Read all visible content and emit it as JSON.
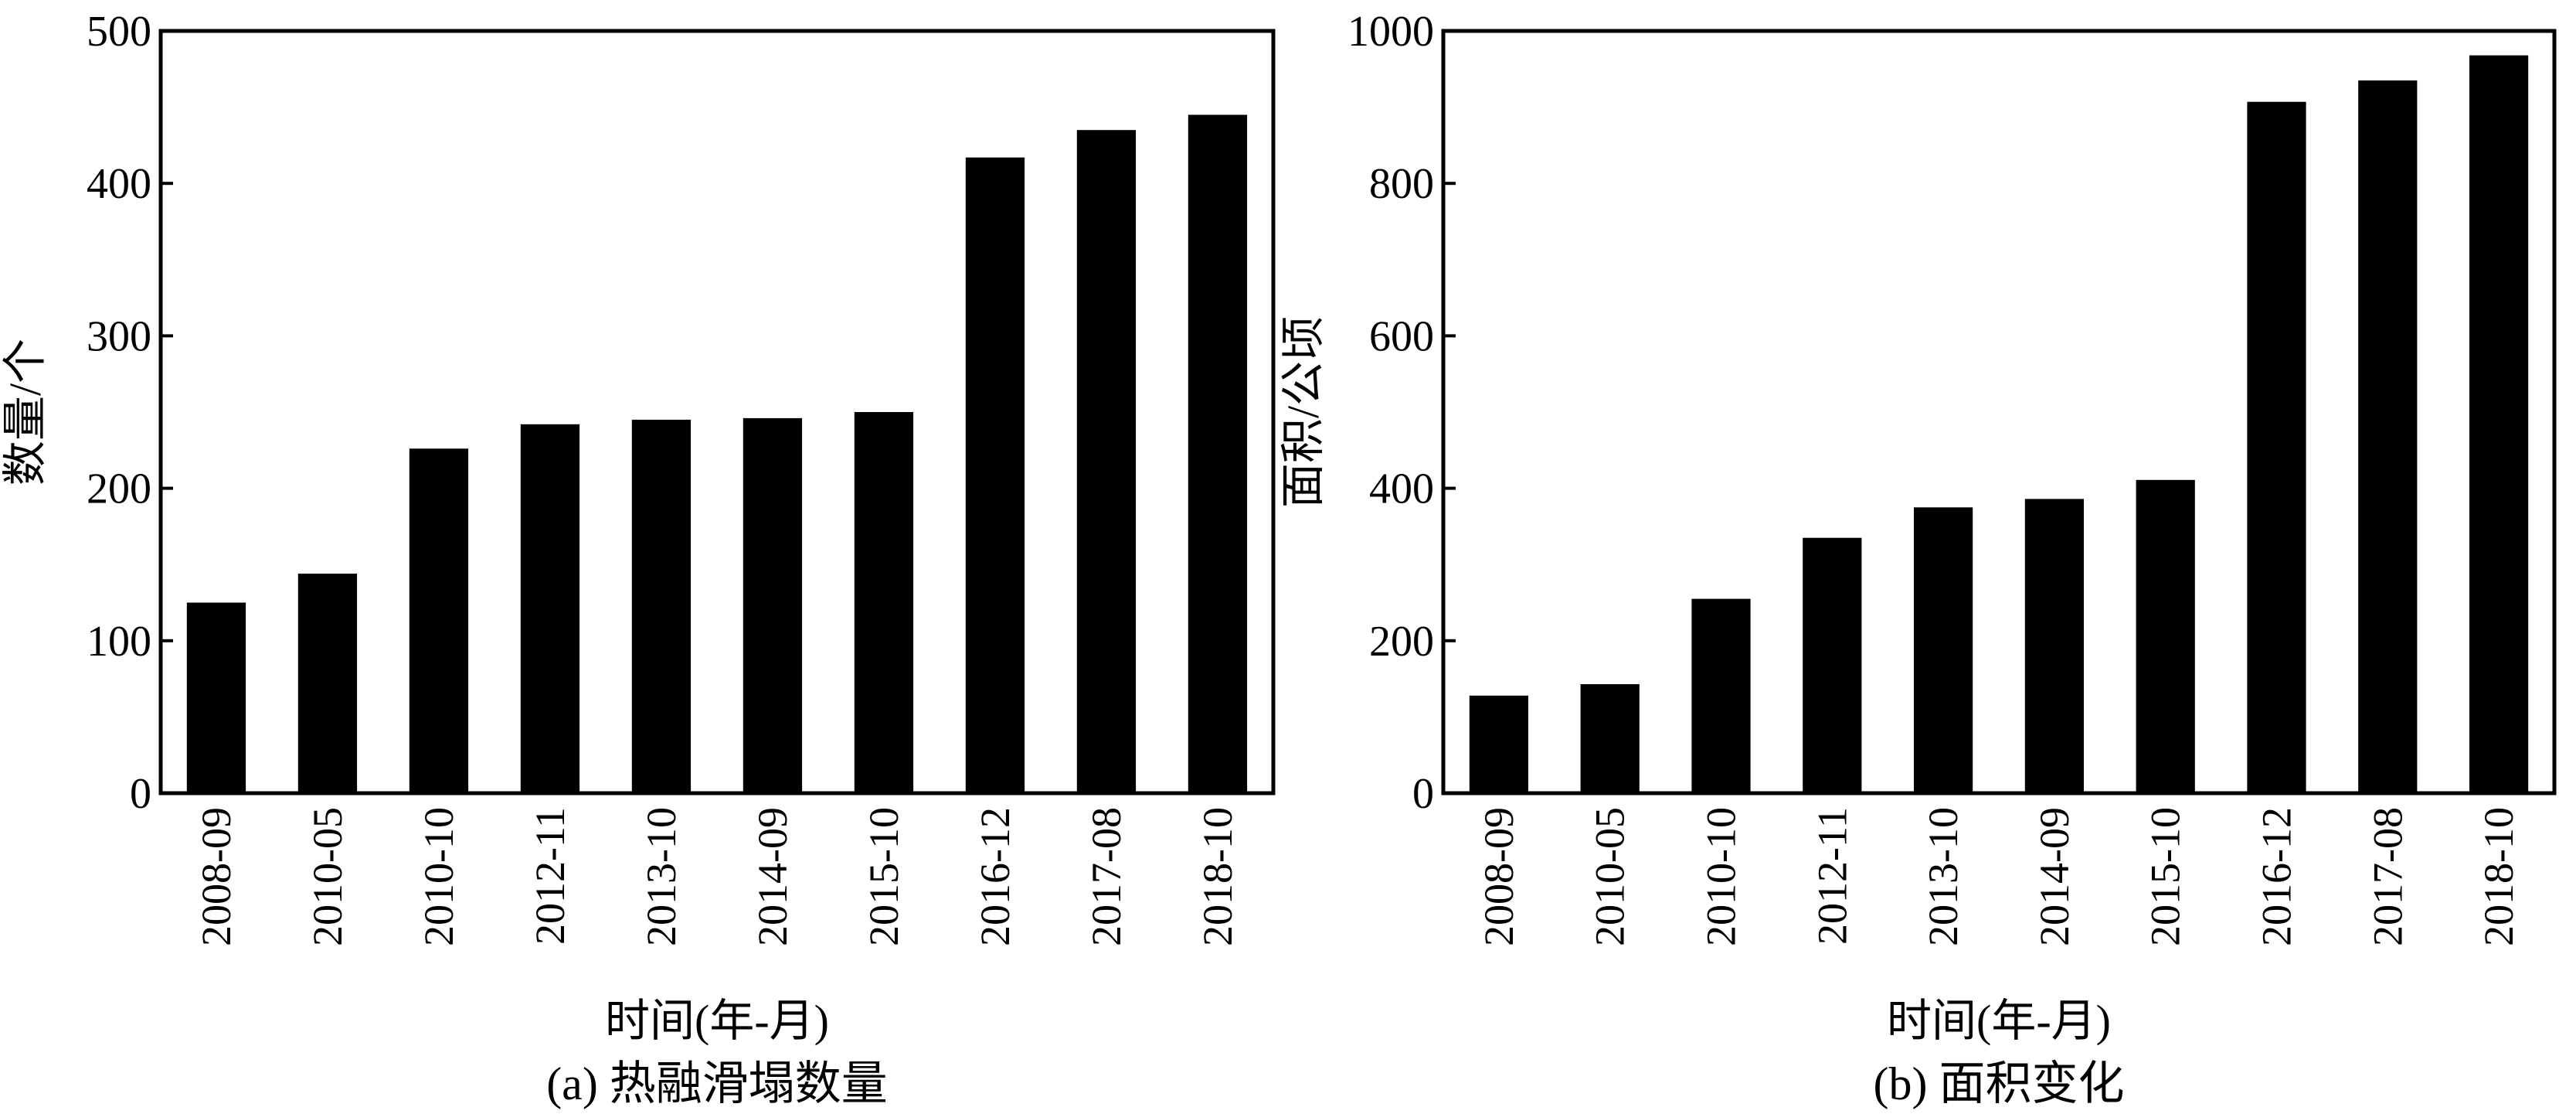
{
  "chart_data": [
    {
      "type": "bar",
      "title": "",
      "caption": "(a) 热融滑塌数量",
      "xlabel": "时间(年-月)",
      "ylabel": "数量/个",
      "categories": [
        "2008-09",
        "2010-05",
        "2010-10",
        "2012-11",
        "2013-10",
        "2014-09",
        "2015-10",
        "2016-12",
        "2017-08",
        "2018-10"
      ],
      "values": [
        125,
        144,
        226,
        242,
        245,
        246,
        250,
        417,
        435,
        445
      ],
      "ylim": [
        0,
        500
      ],
      "yticks": [
        0,
        100,
        200,
        300,
        400,
        500
      ],
      "bar_color": "#000000",
      "grid": false
    },
    {
      "type": "bar",
      "title": "",
      "caption": "(b) 面积变化",
      "xlabel": "时间(年-月)",
      "ylabel": "面积/公顷",
      "categories": [
        "2008-09",
        "2010-05",
        "2010-10",
        "2012-11",
        "2013-10",
        "2014-09",
        "2015-10",
        "2016-12",
        "2017-08",
        "2018-10"
      ],
      "values": [
        128,
        143,
        255,
        335,
        375,
        386,
        411,
        907,
        935,
        968
      ],
      "ylim": [
        0,
        1000
      ],
      "yticks": [
        0,
        200,
        400,
        600,
        800,
        1000
      ],
      "bar_color": "#000000",
      "grid": false
    }
  ]
}
